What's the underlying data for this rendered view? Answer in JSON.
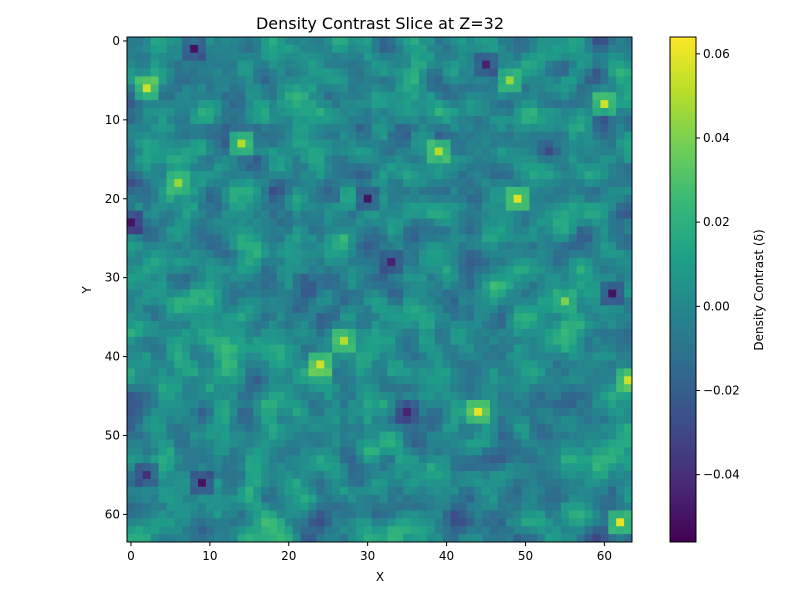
{
  "chart_data": {
    "type": "heatmap",
    "title": "Density Contrast Slice at Z=32",
    "xlabel": "X",
    "ylabel": "Y",
    "grid": false,
    "x_range": [
      0,
      63
    ],
    "y_range": [
      0,
      63
    ],
    "y_axis_inverted": true,
    "colormap": "viridis",
    "x_ticks": [
      0,
      10,
      20,
      30,
      40,
      50,
      60
    ],
    "y_ticks": [
      0,
      10,
      20,
      30,
      40,
      50,
      60
    ],
    "x_tick_labels": [
      "0",
      "10",
      "20",
      "30",
      "40",
      "50",
      "60"
    ],
    "y_tick_labels": [
      "0",
      "10",
      "20",
      "30",
      "40",
      "50",
      "60"
    ],
    "colorbar": {
      "label": "Density Contrast (δ)",
      "vmin": -0.056,
      "vmax": 0.064,
      "ticks": [
        -0.04,
        -0.02,
        0.0,
        0.02,
        0.04,
        0.06
      ],
      "tick_labels": [
        "−0.04",
        "−0.02",
        "0.00",
        "0.02",
        "0.04",
        "0.06"
      ],
      "colors": [
        "#440154",
        "#482878",
        "#3e4989",
        "#31688e",
        "#26828e",
        "#1f9e89",
        "#35b779",
        "#6ece58",
        "#b5de2b",
        "#fde725"
      ]
    },
    "grid_size": [
      64,
      64
    ],
    "notable_cells": [
      {
        "x": 8,
        "y": 1,
        "value": -0.05
      },
      {
        "x": 0,
        "y": 23,
        "value": -0.05
      },
      {
        "x": 30,
        "y": 20,
        "value": -0.05
      },
      {
        "x": 33,
        "y": 28,
        "value": -0.045
      },
      {
        "x": 61,
        "y": 32,
        "value": -0.05
      },
      {
        "x": 9,
        "y": 56,
        "value": -0.05
      },
      {
        "x": 45,
        "y": 3,
        "value": -0.045
      },
      {
        "x": 35,
        "y": 47,
        "value": -0.045
      },
      {
        "x": 2,
        "y": 55,
        "value": -0.04
      },
      {
        "x": 24,
        "y": 41,
        "value": 0.055
      },
      {
        "x": 44,
        "y": 47,
        "value": 0.06
      },
      {
        "x": 49,
        "y": 20,
        "value": 0.058
      },
      {
        "x": 60,
        "y": 8,
        "value": 0.055
      },
      {
        "x": 63,
        "y": 43,
        "value": 0.055
      },
      {
        "x": 2,
        "y": 6,
        "value": 0.055
      },
      {
        "x": 14,
        "y": 13,
        "value": 0.05
      },
      {
        "x": 27,
        "y": 38,
        "value": 0.05
      },
      {
        "x": 62,
        "y": 61,
        "value": 0.06
      },
      {
        "x": 39,
        "y": 14,
        "value": 0.05
      },
      {
        "x": 48,
        "y": 5,
        "value": 0.045
      },
      {
        "x": 6,
        "y": 18,
        "value": 0.045
      },
      {
        "x": 55,
        "y": 33,
        "value": 0.04
      }
    ],
    "noise_amplitude": 0.02
  }
}
